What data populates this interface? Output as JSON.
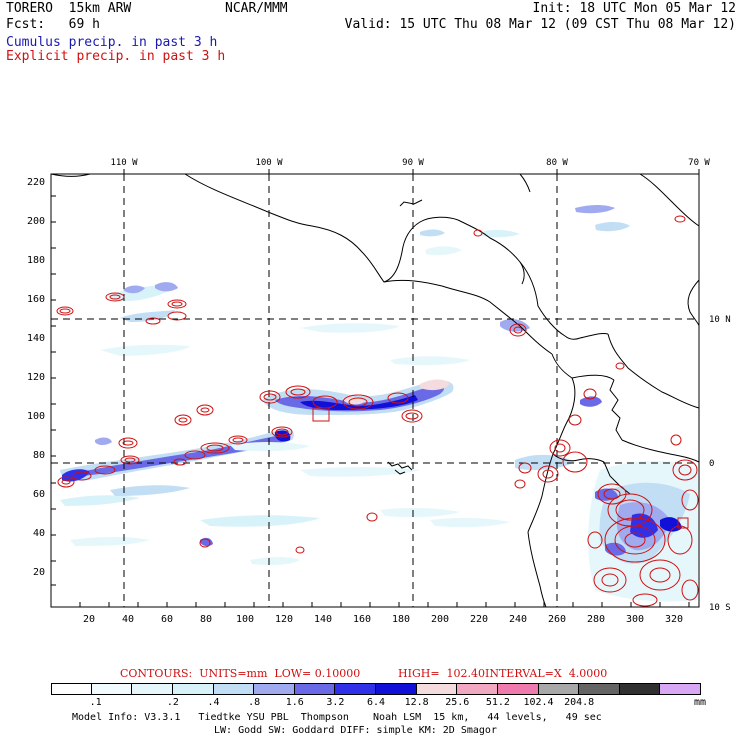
{
  "header": {
    "model": "TORERO  15km ARW",
    "center": "NCAR/MMM",
    "init": "Init: 18 UTC Mon 05 Mar 12",
    "fcst": "Fcst:   69 h",
    "valid": "Valid: 15 UTC Thu 08 Mar 12 (09 CST Thu 08 Mar 12)",
    "legend_cumulus": "Cumulus precip. in past 3 h",
    "legend_explicit": "Explicit precip. in past 3 h"
  },
  "colors": {
    "cumulus": "#1a1ab0",
    "explicit": "#d01010"
  },
  "map": {
    "lon_labels": [
      "110 W",
      "100 W",
      "90 W",
      "80 W",
      "70 W"
    ],
    "lat_labels": [
      "10 N",
      "0",
      "10 S"
    ],
    "x_ticks": [
      "20",
      "40",
      "60",
      "80",
      "100",
      "120",
      "140",
      "160",
      "180",
      "200",
      "220",
      "240",
      "260",
      "280",
      "300",
      "320"
    ],
    "y_ticks": [
      "20",
      "40",
      "60",
      "80",
      "100",
      "120",
      "140",
      "160",
      "180",
      "200",
      "220"
    ]
  },
  "contour_info": {
    "units": "CONTOURS:  UNITS=mm  LOW= 0.10000",
    "high": "HIGH=  102.40",
    "interval": "INTERVAL=X  4.0000"
  },
  "colorbar": {
    "colors": [
      "#ffffff",
      "#f2fbfe",
      "#e6f7fc",
      "#d8f2fa",
      "#c2def4",
      "#a0aaee",
      "#6a6ae6",
      "#3030e8",
      "#1010d8",
      "#f4dcde",
      "#f2a8c0",
      "#ee7aae",
      "#a8a8a8",
      "#646464",
      "#303030",
      "#d8a8f4"
    ],
    "labels": [
      ".1",
      ".2",
      ".4",
      ".8",
      "1.6",
      "3.2",
      "6.4",
      "12.8",
      "25.6",
      "51.2",
      "102.4",
      "204.8"
    ],
    "unit": "mm"
  },
  "footer": {
    "line1": "Model Info: V3.3.1   Tiedtke YSU PBL  Thompson    Noah LSM  15 km,   44 levels,   49 sec",
    "line2": "LW: Godd SW: Goddard DIFF: simple KM: 2D Smagor"
  }
}
